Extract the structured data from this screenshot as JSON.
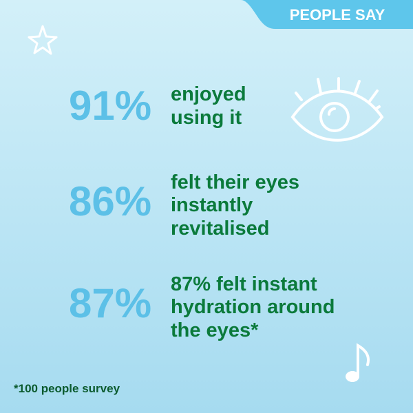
{
  "header": {
    "tag": "PEOPLE SAY"
  },
  "stats": [
    {
      "figure": "91%",
      "lines": [
        "enjoyed",
        "using it"
      ]
    },
    {
      "figure": "86%",
      "lines": [
        "felt their eyes",
        "instantly",
        "revitalised"
      ]
    },
    {
      "figure": "87%",
      "lines": [
        "87% felt instant",
        "hydration around",
        "the eyes*"
      ]
    }
  ],
  "footnote": "*100 people survey"
}
